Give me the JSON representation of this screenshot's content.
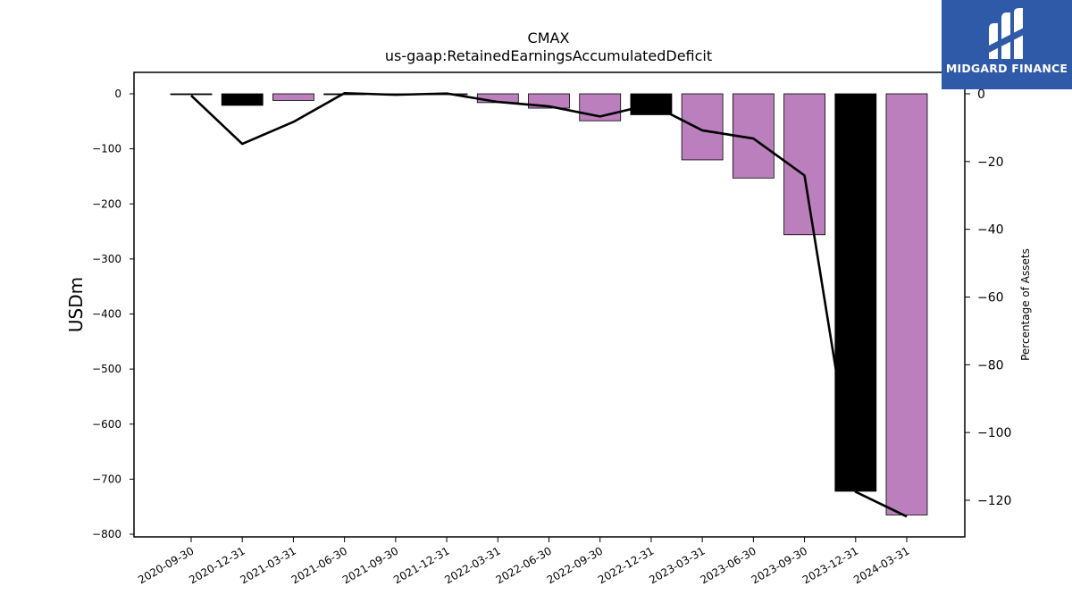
{
  "chart_data": {
    "type": "bar",
    "title": "CMAX",
    "subtitle": "us-gaap:RetainedEarningsAccumulatedDeficit",
    "ylabel": "USDm",
    "y2label": "Percentage of Assets",
    "ylim": [
      -800,
      40
    ],
    "y2lim": [
      -131.5,
      6.5
    ],
    "yticks": [
      0,
      -100,
      -200,
      -300,
      -400,
      -500,
      -600,
      -700,
      -800
    ],
    "yticks_labels": [
      "0",
      "−100",
      "−200",
      "−300",
      "−400",
      "−500",
      "−600",
      "−700",
      "−800"
    ],
    "y2ticks": [
      0,
      -20,
      -40,
      -60,
      -80,
      -100,
      -120
    ],
    "y2ticks_labels": [
      "0",
      "−20",
      "−40",
      "−60",
      "−80",
      "−100",
      "−120"
    ],
    "categories": [
      "2020-09-30",
      "2020-12-31",
      "2021-03-31",
      "2021-06-30",
      "2021-09-30",
      "2021-12-31",
      "2022-03-31",
      "2022-06-30",
      "2022-09-30",
      "2022-12-31",
      "2023-03-31",
      "2023-06-30",
      "2023-09-30",
      "2023-12-31",
      "2024-03-31"
    ],
    "series": [
      {
        "values": [
          -1,
          -21,
          -12,
          -1,
          0,
          0,
          -16,
          -26,
          -49,
          -38,
          -120,
          -153,
          -256,
          -722,
          -765
        ],
        "colors": [
          "#000000",
          "#000000",
          "#bc7fbe",
          "#000000",
          "#bc7fbe",
          "#bc7fbe",
          "#bc7fbe",
          "#bc7fbe",
          "#bc7fbe",
          "#000000",
          "#bc7fbe",
          "#bc7fbe",
          "#bc7fbe",
          "#000000",
          "#bc7fbe"
        ]
      },
      {
        "axis": "right",
        "type": "line",
        "color": "#000000",
        "values": [
          -0.5,
          -14.8,
          -8.3,
          0.2,
          -0.3,
          0.1,
          -2.4,
          -3.7,
          -6.7,
          -3.1,
          -10.8,
          -13.2,
          -24.1,
          -117.5,
          -124.8
        ]
      }
    ],
    "grid": false
  },
  "logo": {
    "text": "MIDGARD FINANCE",
    "color": "#2f5aa8"
  }
}
